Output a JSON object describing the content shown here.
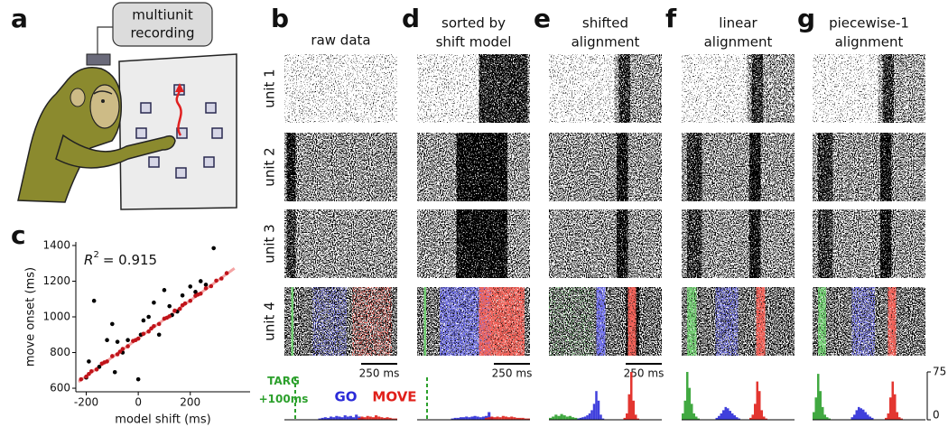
{
  "callout": [
    "multiunit",
    "recording"
  ],
  "panel_labels": [
    "a",
    "b",
    "c",
    "d",
    "e",
    "f",
    "g"
  ],
  "column_titles": [
    [
      "raw data"
    ],
    [
      "sorted by",
      "shift model"
    ],
    [
      "shifted",
      "alignment"
    ],
    [
      "linear",
      "alignment"
    ],
    [
      "piecewise-1",
      "alignment"
    ]
  ],
  "row_labels": [
    "unit 1",
    "unit 2",
    "unit 3",
    "unit 4"
  ],
  "scale_bars": [
    "250 ms",
    "250 ms",
    "250 ms"
  ],
  "chart_data": [
    {
      "type": "scatter",
      "xlabel": "model shift (ms)",
      "ylabel": "move onset (ms)",
      "annotation": {
        "symbol": "R",
        "superscript": "2",
        "text": "= 0.915"
      },
      "xlim": [
        -240,
        430
      ],
      "ylim": [
        580,
        1420
      ],
      "xticks": [
        -200,
        0,
        200
      ],
      "yticks": [
        600,
        800,
        1000,
        1200,
        1400
      ],
      "series": [
        {
          "color": "#000000",
          "x": [
            -190,
            -170,
            -120,
            -100,
            -90,
            -60,
            -40,
            0,
            20,
            40,
            60,
            80,
            100,
            120,
            150,
            170,
            200,
            220,
            240,
            260,
            290,
            -150,
            -80,
            10,
            130,
            -200
          ],
          "values": [
            750,
            1090,
            870,
            960,
            690,
            800,
            870,
            650,
            980,
            1000,
            1080,
            900,
            1150,
            1060,
            1030,
            1120,
            1170,
            1140,
            1200,
            1180,
            1385,
            720,
            860,
            900,
            1010,
            660
          ]
        },
        {
          "color": "#c0141a",
          "x": [
            -220,
            -200,
            -180,
            -160,
            -140,
            -120,
            -100,
            -80,
            -60,
            -40,
            -20,
            0,
            20,
            40,
            60,
            80,
            100,
            120,
            140,
            160,
            180,
            200,
            220,
            240,
            260,
            280,
            300,
            320,
            340,
            -190,
            -130,
            -70,
            -10,
            50,
            110,
            170,
            230
          ],
          "values": [
            650,
            665,
            695,
            705,
            738,
            750,
            780,
            790,
            820,
            835,
            865,
            878,
            905,
            918,
            948,
            960,
            990,
            1003,
            1035,
            1045,
            1075,
            1090,
            1118,
            1130,
            1160,
            1172,
            1203,
            1215,
            1245,
            680,
            745,
            805,
            870,
            935,
            995,
            1065,
            1125
          ]
        }
      ],
      "fit": {
        "color": "#f4a3a3",
        "x": [
          -230,
          370
        ],
        "values": [
          636,
          1272
        ]
      }
    },
    {
      "type": "histogram",
      "xlim": [
        0,
        1000
      ],
      "ylim": [
        0,
        75
      ],
      "markers": [
        {
          "label": "TARG +100ms",
          "color": "#2ca02c",
          "x": 96
        }
      ],
      "series": [
        {
          "name": "GO",
          "color": "#2b2bd8",
          "bins": [
            300,
            325,
            350,
            375,
            400,
            425,
            450,
            475,
            500,
            525,
            550,
            575,
            600,
            625,
            650,
            675,
            700
          ],
          "values": [
            2,
            3,
            4,
            3,
            5,
            4,
            6,
            5,
            4,
            7,
            5,
            6,
            4,
            8,
            5,
            3
          ]
        },
        {
          "name": "MOVE",
          "color": "#e0201a",
          "bins": [
            650,
            675,
            700,
            725,
            750,
            775,
            800,
            825,
            850,
            875,
            900,
            925,
            950,
            975,
            1000
          ],
          "values": [
            3,
            5,
            4,
            6,
            5,
            4,
            7,
            5,
            4,
            3,
            4,
            3,
            2,
            2
          ]
        }
      ]
    },
    {
      "type": "histogram",
      "xlim": [
        0,
        1000
      ],
      "ylim": [
        0,
        75
      ],
      "markers": [
        {
          "color": "#2ca02c",
          "x": 88
        }
      ],
      "series": [
        {
          "color": "#2b2bd8",
          "bins": [
            300,
            325,
            350,
            375,
            400,
            425,
            450,
            475,
            500,
            525,
            550,
            575,
            600,
            625,
            650,
            675
          ],
          "values": [
            2,
            3,
            3,
            4,
            4,
            5,
            4,
            5,
            6,
            5,
            4,
            5,
            6,
            12,
            4
          ]
        },
        {
          "color": "#e0201a",
          "bins": [
            600,
            625,
            650,
            675,
            700,
            725,
            750,
            775,
            800,
            825,
            850,
            875,
            900,
            925,
            950,
            975,
            1000
          ],
          "values": [
            3,
            4,
            5,
            4,
            5,
            4,
            6,
            5,
            4,
            5,
            4,
            3,
            3,
            3,
            2,
            2
          ]
        }
      ]
    },
    {
      "type": "histogram",
      "xlim": [
        0,
        1000
      ],
      "ylim": [
        0,
        75
      ],
      "series": [
        {
          "color": "#2ca02c",
          "bins": [
            0,
            25,
            50,
            75,
            100,
            125,
            150,
            175,
            200,
            225,
            250,
            275,
            300,
            325,
            350
          ],
          "values": [
            3,
            5,
            8,
            6,
            9,
            7,
            5,
            6,
            4,
            3,
            2,
            2,
            1,
            1
          ]
        },
        {
          "color": "#2b2bd8",
          "bins": [
            250,
            270,
            290,
            310,
            330,
            350,
            370,
            390,
            410,
            430,
            450,
            470,
            490
          ],
          "values": [
            2,
            3,
            4,
            5,
            7,
            10,
            15,
            25,
            45,
            30,
            8,
            2
          ]
        },
        {
          "color": "#e0201a",
          "bins": [
            660,
            680,
            700,
            720,
            740,
            760,
            780,
            800
          ],
          "values": [
            3,
            10,
            40,
            75,
            30,
            8,
            2
          ]
        }
      ]
    },
    {
      "type": "histogram",
      "xlim": [
        0,
        1000
      ],
      "ylim": [
        0,
        75
      ],
      "series": [
        {
          "color": "#2ca02c",
          "bins": [
            0,
            20,
            40,
            60,
            80,
            100,
            120,
            140,
            160
          ],
          "values": [
            10,
            30,
            75,
            50,
            25,
            10,
            5,
            2
          ]
        },
        {
          "color": "#2b2bd8",
          "bins": [
            300,
            320,
            340,
            360,
            380,
            400,
            420,
            440,
            460,
            480,
            500,
            520
          ],
          "values": [
            3,
            6,
            10,
            15,
            20,
            18,
            14,
            10,
            7,
            4,
            2
          ]
        },
        {
          "color": "#e0201a",
          "bins": [
            600,
            620,
            640,
            660,
            680,
            700,
            720,
            740,
            760
          ],
          "values": [
            3,
            8,
            25,
            60,
            45,
            15,
            5,
            2
          ]
        }
      ]
    },
    {
      "type": "histogram",
      "xlim": [
        0,
        1000
      ],
      "ylim": [
        0,
        75
      ],
      "yticks": [
        0,
        75
      ],
      "series": [
        {
          "color": "#2ca02c",
          "bins": [
            0,
            20,
            40,
            60,
            80,
            100,
            120,
            140,
            160
          ],
          "values": [
            12,
            35,
            72,
            45,
            20,
            8,
            4,
            2
          ]
        },
        {
          "color": "#2b2bd8",
          "bins": [
            340,
            360,
            380,
            400,
            420,
            440,
            460,
            480,
            500,
            520,
            540
          ],
          "values": [
            4,
            8,
            15,
            20,
            18,
            16,
            12,
            8,
            5,
            3
          ]
        },
        {
          "color": "#e0201a",
          "bins": [
            640,
            660,
            680,
            700,
            720,
            740,
            760,
            780,
            800
          ],
          "values": [
            3,
            10,
            35,
            60,
            40,
            12,
            4,
            2
          ]
        }
      ]
    }
  ]
}
